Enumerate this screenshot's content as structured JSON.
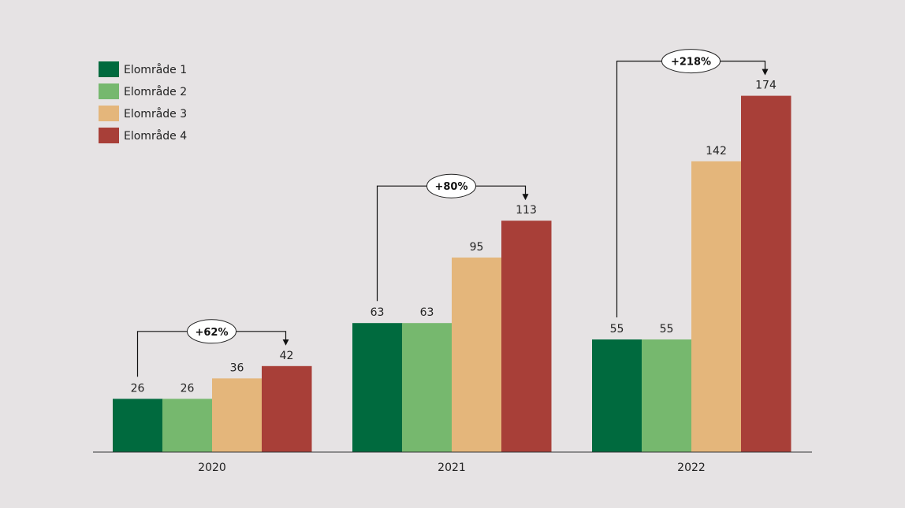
{
  "chart_data": {
    "type": "bar",
    "title": "",
    "xlabel": "",
    "ylabel": "",
    "categories": [
      "2020",
      "2021",
      "2022"
    ],
    "ylim": [
      0,
      180
    ],
    "grid": false,
    "legend_position": "top-left",
    "series": [
      {
        "name": "Elområde 1",
        "color": "#006a3e",
        "values": [
          26,
          63,
          55
        ]
      },
      {
        "name": "Elområde 2",
        "color": "#76b86e",
        "values": [
          26,
          63,
          55
        ]
      },
      {
        "name": "Elområde 3",
        "color": "#e4b67b",
        "values": [
          36,
          95,
          142
        ]
      },
      {
        "name": "Elområde 4",
        "color": "#a83f38",
        "values": [
          42,
          113,
          174
        ]
      }
    ],
    "annotations": [
      {
        "category": "2020",
        "from_series": 0,
        "to_series": 3,
        "label": "+62%"
      },
      {
        "category": "2021",
        "from_series": 0,
        "to_series": 3,
        "label": "+80%"
      },
      {
        "category": "2022",
        "from_series": 0,
        "to_series": 3,
        "label": "+218%"
      }
    ]
  }
}
